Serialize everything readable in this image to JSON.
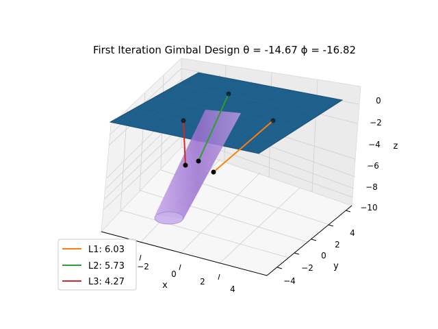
{
  "chart_data": {
    "type": "3d-surface",
    "title": "First Iteration Gimbal Design θ = -14.67 ϕ = -16.82",
    "xlabel": "x",
    "ylabel": "y",
    "zlabel": "z",
    "x_ticks": [
      "−2",
      "0",
      "2",
      "4"
    ],
    "y_ticks": [
      "−4",
      "−2",
      "0",
      "2",
      "4"
    ],
    "z_ticks": [
      "0",
      "−2",
      "−4",
      "−6",
      "−8",
      "−10"
    ],
    "xlim": [
      -5,
      5
    ],
    "ylim": [
      -5,
      5
    ],
    "zlim": [
      -10,
      1
    ],
    "grid": true,
    "legend_position": "lower-left",
    "series": [
      {
        "name": "L1: 6.03",
        "color": "#ff7f0e"
      },
      {
        "name": "L2: 5.73",
        "color": "#2ca02c"
      },
      {
        "name": "L3: 4.27",
        "color": "#d62728"
      }
    ],
    "colors": {
      "plane": "#1f5f8b",
      "cylinder": "#a678d8",
      "points": "#000000"
    }
  }
}
